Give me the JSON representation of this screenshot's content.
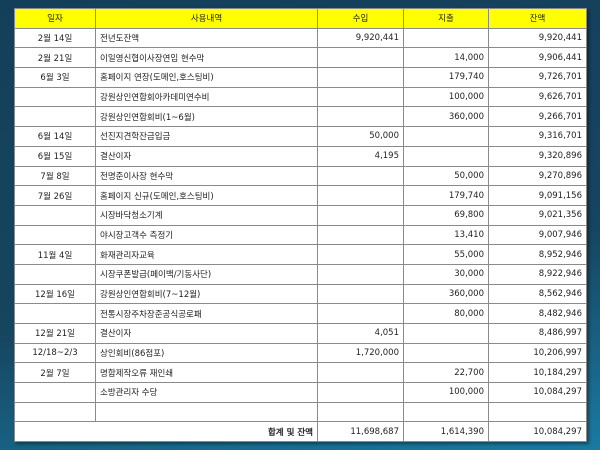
{
  "header": [
    "일자",
    "사용내역",
    "수입",
    "지출",
    "잔액"
  ],
  "rows": [
    [
      "2월 14일",
      "전년도잔액",
      "9,920,441",
      "",
      "9,920,441"
    ],
    [
      "2월 21일",
      "이일영신협이사장연임 현수막",
      "",
      "14,000",
      "9,906,441"
    ],
    [
      "6월 3일",
      "홈페이지 연장(도메인,호스팅비)",
      "",
      "179,740",
      "9,726,701"
    ],
    [
      "",
      "강원상인연합회아카데미연수비",
      "",
      "100,000",
      "9,626,701"
    ],
    [
      "",
      "강원상인연합회비(1~6월)",
      "",
      "360,000",
      "9,266,701"
    ],
    [
      "6월 14일",
      "선진지견학잔금입금",
      "50,000",
      "",
      "9,316,701"
    ],
    [
      "6월 15일",
      "결산이자",
      "4,195",
      "",
      "9,320,896"
    ],
    [
      "7월 8일",
      "전명준이사장 현수막",
      "",
      "50,000",
      "9,270,896"
    ],
    [
      "7월 26일",
      "홈페이지 신규(도메인,호스팅비)",
      "",
      "179,740",
      "9,091,156"
    ],
    [
      "",
      "시장바닥청소기계",
      "",
      "69,800",
      "9,021,356"
    ],
    [
      "",
      "야시장고객수 측정기",
      "",
      "13,410",
      "9,007,946"
    ],
    [
      "11월 4일",
      "화재관리자교육",
      "",
      "55,000",
      "8,952,946"
    ],
    [
      "",
      "시장쿠폰발급(페이백/기동사단)",
      "",
      "30,000",
      "8,922,946"
    ],
    [
      "12월 16일",
      "강원상인연합회비(7~12월)",
      "",
      "360,000",
      "8,562,946"
    ],
    [
      "",
      "전통시장주차장준공식공로패",
      "",
      "80,000",
      "8,482,946"
    ],
    [
      "12월 21일",
      "결산이자",
      "4,051",
      "",
      "8,486,997"
    ],
    [
      "12/18~2/3",
      "상인회비(86점포)",
      "1,720,000",
      "",
      "10,206,997"
    ],
    [
      "2월 7일",
      "명함제작오류 재인쇄",
      "",
      "22,700",
      "10,184,297"
    ],
    [
      "",
      "소방관리자 수당",
      "",
      "100,000",
      "10,084,297"
    ],
    [
      "",
      "",
      "",
      "",
      ""
    ]
  ],
  "total": {
    "label": "합계 및 잔액",
    "income": "11,698,687",
    "expense": "1,614,390",
    "balance": "10,084,297"
  },
  "colors": {
    "header_bg": "#ffff00",
    "background": "#16455f"
  }
}
